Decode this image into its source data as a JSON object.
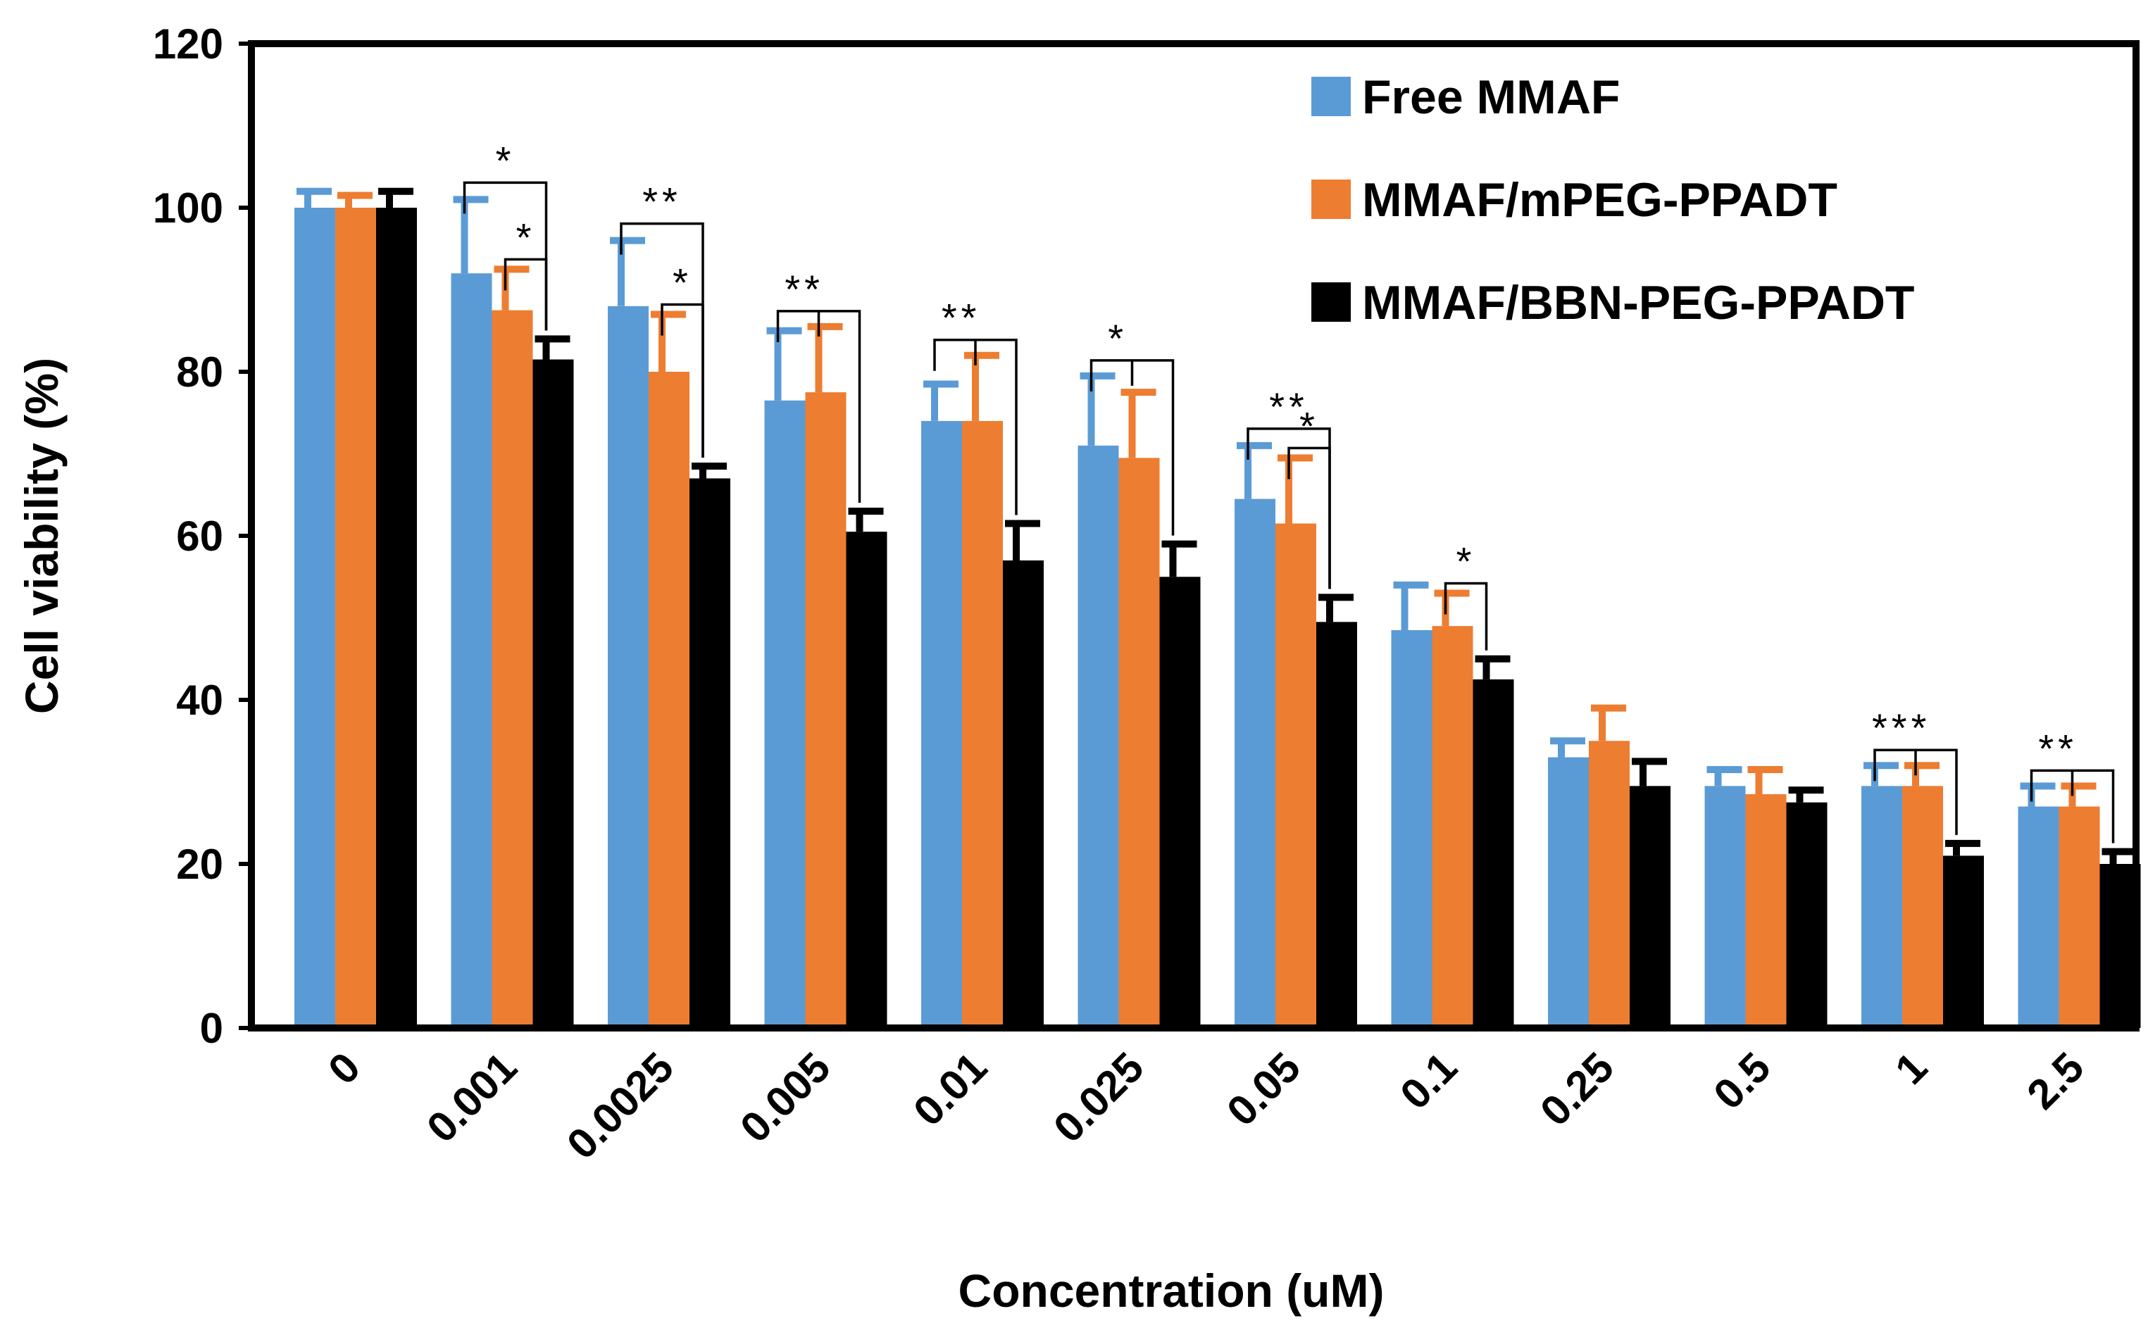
{
  "chart_data": {
    "type": "bar",
    "xlabel": "Concentration (uM)",
    "ylabel": "Cell viability (%)",
    "ylim": [
      0,
      120
    ],
    "yticks": [
      0,
      20,
      40,
      60,
      80,
      100,
      120
    ],
    "ytick_labels": [
      "0",
      "20",
      "40",
      "60",
      "80",
      "100",
      "120"
    ],
    "categories": [
      "0",
      "0.001",
      "0.0025",
      "0.005",
      "0.01",
      "0.025",
      "0.05",
      "0.1",
      "0.25",
      "0.5",
      "1",
      "2.5"
    ],
    "legend_position": "top-right",
    "grid": false,
    "series": [
      {
        "name": "Free MMAF",
        "color": "#5B9BD5",
        "values": [
          100,
          92,
          88,
          76.5,
          74,
          71,
          64.5,
          48.5,
          33,
          29.5,
          29.5,
          27
        ],
        "errors": [
          2,
          9,
          8,
          8.5,
          4.5,
          8.5,
          6.5,
          5.5,
          2,
          2,
          2.5,
          2.5
        ]
      },
      {
        "name": "MMAF/mPEG-PPADT",
        "color": "#ED7D31",
        "values": [
          100,
          87.5,
          80,
          77.5,
          74,
          69.5,
          61.5,
          49,
          35,
          28.5,
          29.5,
          27
        ],
        "errors": [
          1.5,
          5,
          7,
          8,
          8,
          8,
          8,
          4,
          4,
          3,
          2.5,
          2.5
        ]
      },
      {
        "name": "MMAF/BBN-PEG-PPADT",
        "color": "#000000",
        "values": [
          100,
          81.5,
          67,
          60.5,
          57,
          55,
          49.5,
          42.5,
          29.5,
          27.5,
          21,
          20
        ],
        "errors": [
          2,
          2.5,
          1.5,
          2.5,
          4.5,
          4,
          3,
          2.5,
          3,
          1.5,
          1.5,
          1.5
        ]
      }
    ],
    "annotations": [
      {
        "category": "0.001",
        "from_series": 0,
        "to_series": 2,
        "label": "*"
      },
      {
        "category": "0.001",
        "from_series": 1,
        "to_series": 2,
        "label": "*"
      },
      {
        "category": "0.0025",
        "from_series": 0,
        "to_series": 2,
        "label": "**"
      },
      {
        "category": "0.0025",
        "from_series": 1,
        "to_series": 2,
        "label": "*"
      },
      {
        "category": "0.005",
        "from_series": [
          0,
          1
        ],
        "to_series": 2,
        "label": "**"
      },
      {
        "category": "0.01",
        "from_series": [
          0,
          1
        ],
        "to_series": 2,
        "label": "**"
      },
      {
        "category": "0.025",
        "from_series": [
          0,
          1
        ],
        "to_series": 2,
        "label": "*"
      },
      {
        "category": "0.05",
        "from_series": 0,
        "to_series": 2,
        "label": "**"
      },
      {
        "category": "0.05",
        "from_series": 1,
        "to_series": 2,
        "label": "*"
      },
      {
        "category": "0.1",
        "from_series": 1,
        "to_series": 2,
        "label": "*"
      },
      {
        "category": "1",
        "from_series": [
          0,
          1
        ],
        "to_series": 2,
        "label": "***"
      },
      {
        "category": "2.5",
        "from_series": [
          0,
          1
        ],
        "to_series": 2,
        "label": "**"
      }
    ]
  }
}
